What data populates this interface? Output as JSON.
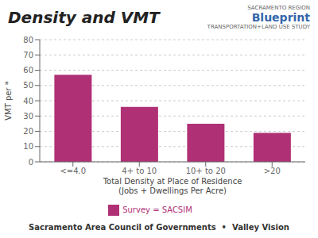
{
  "chart_data": {
    "type": "bar",
    "title": "Density and VMT",
    "categories": [
      "<=4.0",
      "4+ to 10",
      "10+ to 20",
      ">20"
    ],
    "series": [
      {
        "name": "Survey = SACSIM",
        "color": "#b03075",
        "values": [
          57,
          36,
          25,
          19
        ]
      }
    ],
    "ylabel": "VMT per *",
    "xlabel": "Total Density at Place of Residence\n(Jobs + Dwellings Per Acre)",
    "ylim": [
      0,
      80
    ],
    "yticks": [
      0,
      10,
      20,
      30,
      40,
      50,
      60,
      70,
      80
    ],
    "grid": true,
    "legend": "bottom",
    "annotations": [
      "SACRAMENTO REGION",
      "Blueprint",
      "TRANSPORTATION+LAND USE STUDY",
      "Sacramento Area Council of Governments  •  Valley Vision"
    ]
  }
}
